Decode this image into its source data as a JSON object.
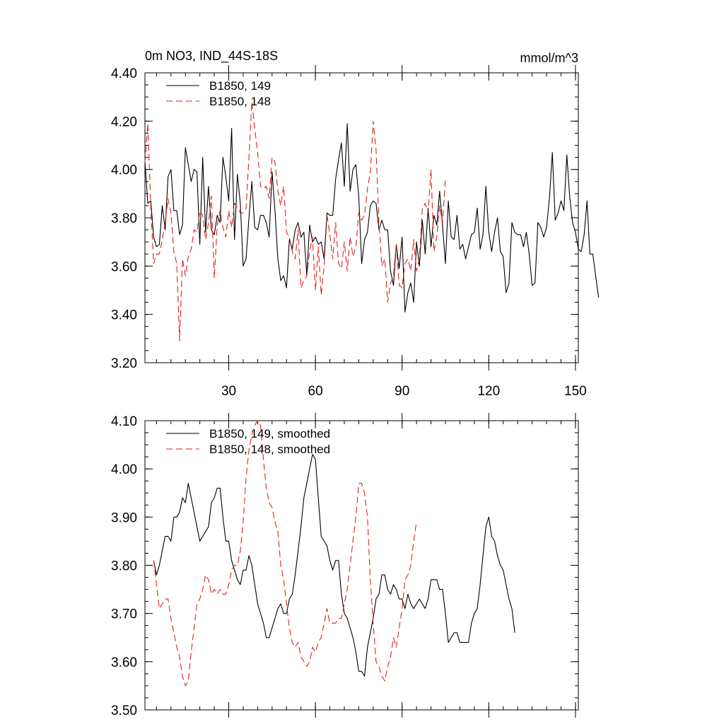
{
  "chart_data": [
    {
      "type": "line",
      "title": "0m NO3, IND_44S-18S",
      "units": "mmol/m^3",
      "xlim": [
        1,
        151
      ],
      "ylim": [
        3.2,
        4.4
      ],
      "x_ticks": [
        30,
        60,
        90,
        120,
        150
      ],
      "x_tick_labels": [
        "30",
        "60",
        "90",
        "120",
        "150"
      ],
      "y_ticks": [
        3.2,
        3.4,
        3.6,
        3.8,
        4.0,
        4.2,
        4.4
      ],
      "y_tick_labels": [
        "3.20",
        "3.40",
        "3.60",
        "3.80",
        "4.00",
        "4.20",
        "4.40"
      ],
      "legend_position": "top-left",
      "series": [
        {
          "name": "B1850, 149",
          "color": "#000000",
          "dash": "solid",
          "x_start": 1,
          "values": [
            4.03,
            3.86,
            3.87,
            3.72,
            3.68,
            3.69,
            3.85,
            3.75,
            3.97,
            4.0,
            3.83,
            3.83,
            3.73,
            3.77,
            4.09,
            4.02,
            3.95,
            4.0,
            3.99,
            3.69,
            4.05,
            3.74,
            3.93,
            3.75,
            3.73,
            3.81,
            3.78,
            4.05,
            3.97,
            3.87,
            4.17,
            3.71,
            3.98,
            3.86,
            3.6,
            3.63,
            3.8,
            3.95,
            3.76,
            3.75,
            3.81,
            3.81,
            3.78,
            3.72,
            3.99,
            3.83,
            3.63,
            3.54,
            3.56,
            3.51,
            3.71,
            3.67,
            3.75,
            3.78,
            3.72,
            3.74,
            3.56,
            3.77,
            3.7,
            3.72,
            3.69,
            3.7,
            3.63,
            3.82,
            3.81,
            3.81,
            3.96,
            4.04,
            4.11,
            3.93,
            4.19,
            3.91,
            4.0,
            4.02,
            3.89,
            3.61,
            3.71,
            3.74,
            3.85,
            3.87,
            3.86,
            3.75,
            3.79,
            3.75,
            3.75,
            3.58,
            3.52,
            3.69,
            3.59,
            3.72,
            3.41,
            3.49,
            3.53,
            3.45,
            3.7,
            3.6,
            3.79,
            3.65,
            3.84,
            3.68,
            3.81,
            3.77,
            3.91,
            3.77,
            3.61,
            3.87,
            3.72,
            3.71,
            3.81,
            3.67,
            3.69,
            3.63,
            3.68,
            3.73,
            3.74,
            3.84,
            3.67,
            3.73,
            3.93,
            3.74,
            3.66,
            3.74,
            3.8,
            3.66,
            3.64,
            3.49,
            3.53,
            3.78,
            3.74,
            3.73,
            3.73,
            3.68,
            3.74,
            3.65,
            3.52,
            3.53,
            3.78,
            3.76,
            3.72,
            3.76,
            3.88,
            4.07,
            3.79,
            3.82,
            3.87,
            3.83,
            4.06,
            3.89,
            3.78,
            3.74,
            3.67,
            3.66,
            3.73,
            3.87,
            3.65,
            3.65,
            3.56,
            3.47
          ]
        },
        {
          "name": "B1850, 148",
          "color": "#e0201b",
          "dash": "dashed",
          "x_start": 1,
          "values": [
            4.03,
            4.19,
            3.85,
            3.61,
            3.65,
            3.65,
            3.71,
            3.78,
            3.88,
            3.82,
            3.66,
            3.61,
            3.29,
            3.63,
            3.56,
            3.64,
            3.67,
            3.75,
            3.74,
            3.83,
            3.81,
            3.71,
            3.78,
            3.89,
            3.55,
            3.77,
            3.83,
            3.76,
            3.72,
            3.83,
            3.76,
            3.86,
            3.84,
            3.82,
            3.82,
            3.84,
            4.05,
            4.28,
            4.17,
            4.07,
            3.93,
            3.92,
            3.93,
            3.88,
            4.05,
            4.03,
            3.91,
            3.85,
            3.93,
            3.74,
            3.72,
            3.66,
            3.63,
            3.75,
            3.51,
            3.54,
            3.56,
            3.66,
            3.72,
            3.5,
            3.68,
            3.48,
            3.6,
            3.81,
            3.73,
            3.63,
            3.78,
            3.61,
            3.59,
            3.7,
            3.58,
            3.72,
            3.64,
            3.68,
            3.82,
            3.79,
            3.81,
            3.92,
            3.99,
            4.2,
            4.08,
            3.78,
            3.6,
            3.63,
            3.45,
            3.53,
            3.56,
            3.69,
            3.52,
            3.51,
            3.61,
            3.63,
            3.58,
            3.71,
            3.58,
            3.63,
            3.84,
            3.86,
            3.82,
            4.0,
            3.66,
            3.72,
            3.85,
            3.78,
            3.96
          ]
        }
      ]
    },
    {
      "type": "line",
      "title": "",
      "units": "",
      "xlim": [
        1,
        151
      ],
      "ylim": [
        3.5,
        4.1
      ],
      "x_ticks": [
        30,
        60,
        90,
        120,
        150
      ],
      "y_ticks": [
        3.5,
        3.6,
        3.7,
        3.8,
        3.9,
        4.0,
        4.1
      ],
      "y_tick_labels": [
        "3.50",
        "3.60",
        "3.70",
        "3.80",
        "3.90",
        "4.00",
        "4.10"
      ],
      "legend_position": "top-left",
      "series": [
        {
          "name": "B1850, 149, smoothed",
          "color": "#000000",
          "dash": "solid",
          "x_start": 4,
          "values": [
            3.81,
            3.78,
            3.8,
            3.83,
            3.86,
            3.86,
            3.85,
            3.9,
            3.9,
            3.91,
            3.94,
            3.93,
            3.97,
            3.94,
            3.91,
            3.88,
            3.85,
            3.86,
            3.87,
            3.88,
            3.93,
            3.94,
            3.96,
            3.96,
            3.9,
            3.85,
            3.85,
            3.81,
            3.79,
            3.77,
            3.76,
            3.79,
            3.79,
            3.82,
            3.8,
            3.76,
            3.72,
            3.7,
            3.68,
            3.65,
            3.65,
            3.67,
            3.69,
            3.71,
            3.72,
            3.7,
            3.7,
            3.73,
            3.74,
            3.78,
            3.83,
            3.88,
            3.94,
            3.97,
            4.0,
            4.03,
            4.02,
            3.94,
            3.86,
            3.85,
            3.84,
            3.81,
            3.79,
            3.81,
            3.81,
            3.74,
            3.7,
            3.69,
            3.67,
            3.65,
            3.62,
            3.58,
            3.58,
            3.57,
            3.63,
            3.66,
            3.69,
            3.73,
            3.74,
            3.78,
            3.78,
            3.75,
            3.74,
            3.76,
            3.75,
            3.73,
            3.73,
            3.71,
            3.74,
            3.72,
            3.71,
            3.72,
            3.73,
            3.72,
            3.71,
            3.73,
            3.77,
            3.77,
            3.77,
            3.75,
            3.75,
            3.7,
            3.64,
            3.65,
            3.66,
            3.66,
            3.64,
            3.64,
            3.64,
            3.64,
            3.68,
            3.7,
            3.71,
            3.76,
            3.82,
            3.88,
            3.9,
            3.86,
            3.85,
            3.82,
            3.8,
            3.79,
            3.76,
            3.73,
            3.71,
            3.66
          ]
        },
        {
          "name": "B1850, 148, smoothed",
          "color": "#e0201b",
          "dash": "dashed",
          "x_start": 4,
          "values": [
            3.81,
            3.76,
            3.71,
            3.72,
            3.73,
            3.73,
            3.69,
            3.66,
            3.63,
            3.61,
            3.57,
            3.55,
            3.56,
            3.62,
            3.67,
            3.72,
            3.73,
            3.75,
            3.78,
            3.77,
            3.74,
            3.75,
            3.74,
            3.75,
            3.74,
            3.74,
            3.76,
            3.79,
            3.8,
            3.8,
            3.83,
            3.89,
            3.98,
            4.04,
            4.07,
            4.09,
            4.1,
            4.09,
            4.02,
            3.96,
            3.93,
            3.92,
            3.89,
            3.87,
            3.8,
            3.77,
            3.72,
            3.67,
            3.64,
            3.63,
            3.64,
            3.61,
            3.6,
            3.59,
            3.6,
            3.63,
            3.62,
            3.64,
            3.65,
            3.68,
            3.71,
            3.68,
            3.68,
            3.68,
            3.69,
            3.69,
            3.72,
            3.75,
            3.8,
            3.85,
            3.9,
            3.97,
            3.97,
            3.95,
            3.9,
            3.77,
            3.68,
            3.6,
            3.59,
            3.57,
            3.56,
            3.59,
            3.61,
            3.65,
            3.63,
            3.67,
            3.71,
            3.77,
            3.78,
            3.8,
            3.85,
            3.89
          ]
        }
      ]
    }
  ]
}
